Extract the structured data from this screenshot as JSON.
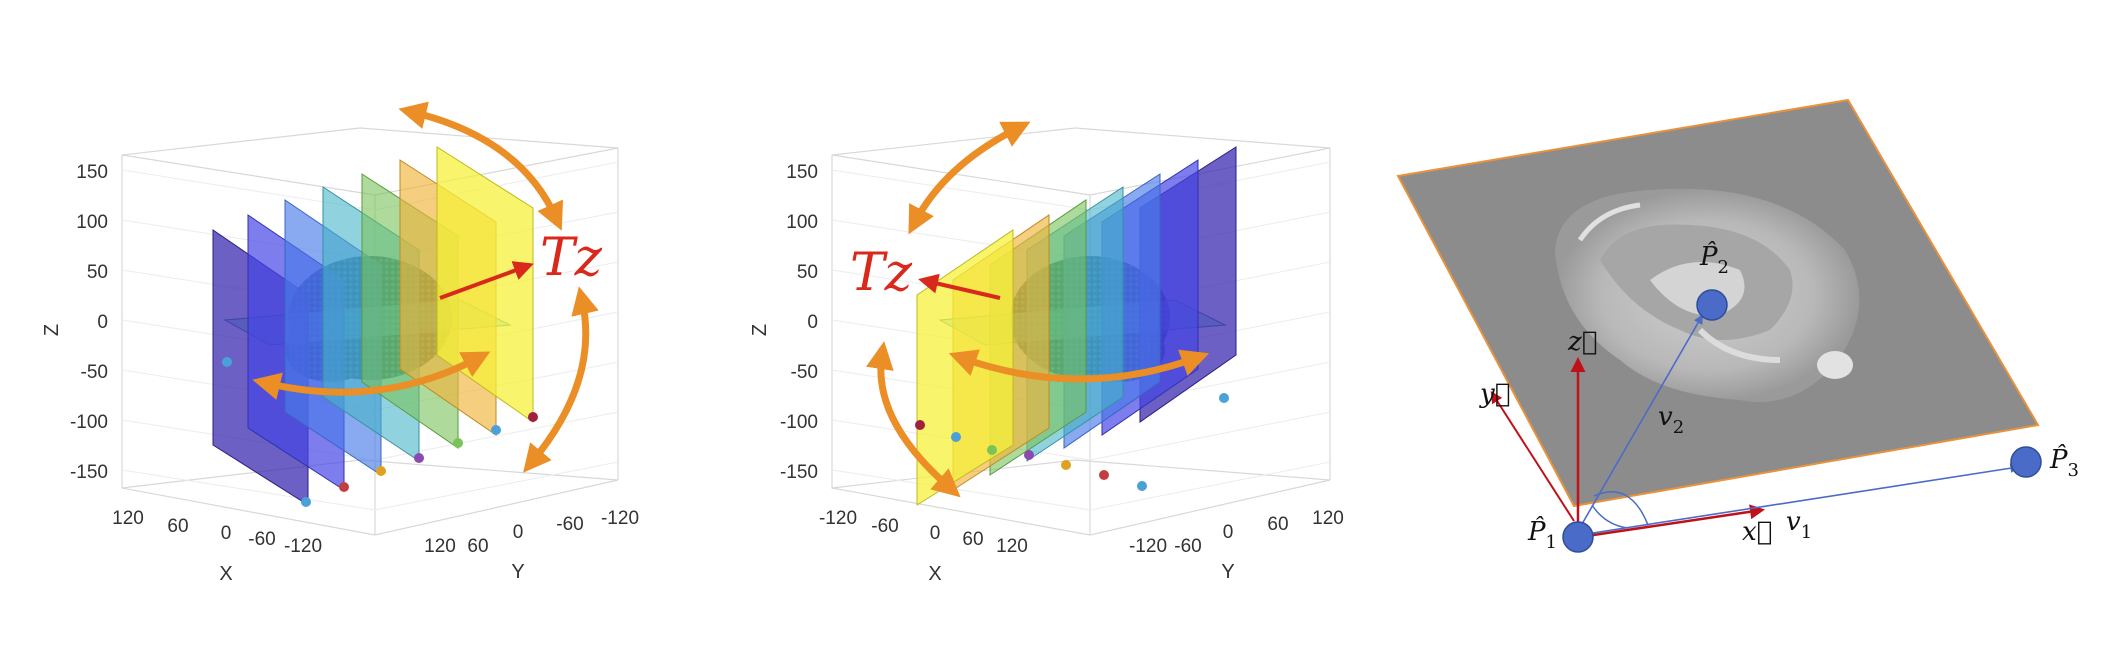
{
  "panel_left": {
    "z_ticks": [
      "150",
      "100",
      "50",
      "0",
      "-50",
      "-100",
      "-150"
    ],
    "x_ticks": [
      "120",
      "60",
      "0",
      "-60",
      "-120"
    ],
    "y_ticks": [
      "-120",
      "-60",
      "0",
      "60",
      "120"
    ],
    "x_label": "X",
    "y_label": "Y",
    "z_label": "Z",
    "translation_label": "Tz",
    "plane_colors": [
      "#3b2bb0",
      "#4646e6",
      "#4a7de8",
      "#46b4c8",
      "#78c35a",
      "#f0b43c",
      "#f5f03a"
    ]
  },
  "panel_middle": {
    "z_ticks": [
      "150",
      "100",
      "50",
      "0",
      "-50",
      "-100",
      "-150"
    ],
    "x_ticks": [
      "-120",
      "-60",
      "0",
      "60",
      "120"
    ],
    "y_ticks": [
      "-120",
      "-60",
      "0",
      "60",
      "120"
    ],
    "x_label": "X",
    "y_label": "Y",
    "z_label": "Z",
    "translation_label": "Tz",
    "plane_colors": [
      "#f5f03a",
      "#f0b43c",
      "#78c35a",
      "#46b4c8",
      "#4a7de8",
      "#4646e6",
      "#3b2bb0"
    ]
  },
  "panel_right": {
    "labels": {
      "p1": "P̂",
      "p1_sub": "1",
      "p2": "P̂",
      "p2_sub": "2",
      "p3": "P̂",
      "p3_sub": "3",
      "v1": "v",
      "v1_sub": "1",
      "v2": "v",
      "v2_sub": "2",
      "x_vec": "x⃗",
      "y_vec": "y⃗",
      "z_vec": "z⃗"
    },
    "colors": {
      "axis": "#c0111b",
      "vector": "#4a6cc8",
      "point": "#4a6cc8",
      "plane_border": "#e8923c",
      "plane_fill": "#8c8c8c"
    }
  }
}
